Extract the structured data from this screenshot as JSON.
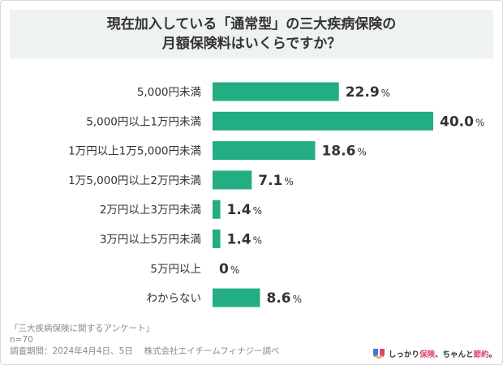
{
  "title": "現在加入している「通常型」の三大疾病保険の\n月額保険料はいくらですか？",
  "chart_data": {
    "type": "bar",
    "orientation": "horizontal",
    "categories": [
      "5,000円未満",
      "5,000円以上1万円未満",
      "1万円以上1万5,000円未満",
      "1万5,000円以上2万円未満",
      "2万円以上3万円未満",
      "3万円以上5万円未満",
      "5万円以上",
      "わからない"
    ],
    "values": [
      22.9,
      40.0,
      18.6,
      7.1,
      1.4,
      1.4,
      0,
      8.6
    ],
    "value_labels": [
      "22.9",
      "40.0",
      "18.6",
      "7.1",
      "1.4",
      "1.4",
      "0",
      "8.6"
    ],
    "unit": "%",
    "bar_color": "#22ad82",
    "grid": false,
    "legend": "none"
  },
  "footer": {
    "survey_name": "「三大疾病保険に関するアンケート」",
    "sample": "n=70",
    "period": "調査期間：2024年4月4日、5日　 株式会社エイチームフィナジー調べ"
  },
  "logo": {
    "text_prefix": "しっかり",
    "text_accent1": "保険",
    "text_mid": "、ちゃんと",
    "text_accent2": "節約",
    "text_suffix": "。"
  }
}
